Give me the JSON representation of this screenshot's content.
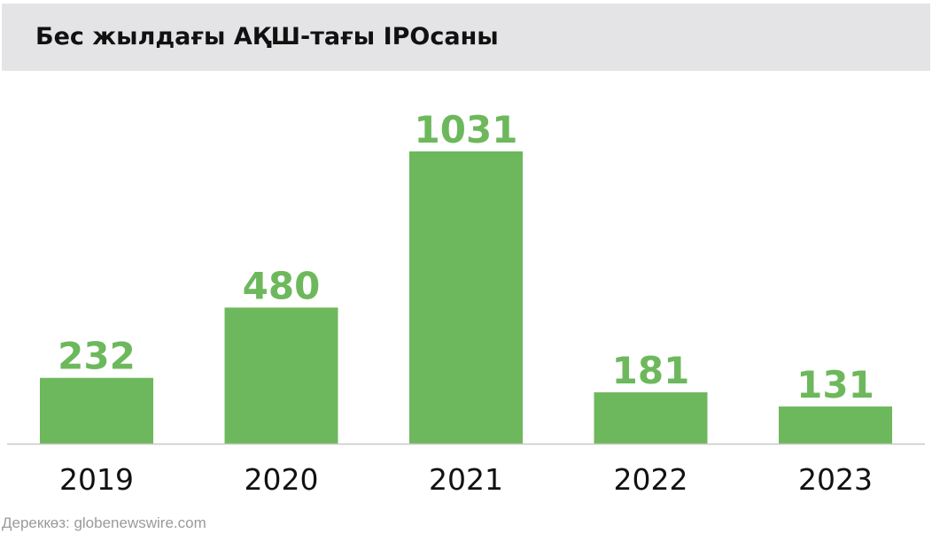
{
  "chart_data": {
    "type": "bar",
    "title": "Бес жылдағы АҚШ-тағы IPOсаны",
    "xlabel": "",
    "ylabel": "",
    "categories": [
      "2019",
      "2020",
      "2021",
      "2022",
      "2023"
    ],
    "values": [
      232,
      480,
      1031,
      181,
      131
    ],
    "data_labels": [
      "232",
      "480",
      "1031",
      "181",
      "131"
    ],
    "ylim": [
      0,
      1031
    ],
    "grid": false,
    "legend": "none",
    "bar_color": "#6db85c",
    "label_color": "#6db85c",
    "axis_color": "#c8c8c8"
  },
  "source": "Дереккөз: globenewswire.com"
}
